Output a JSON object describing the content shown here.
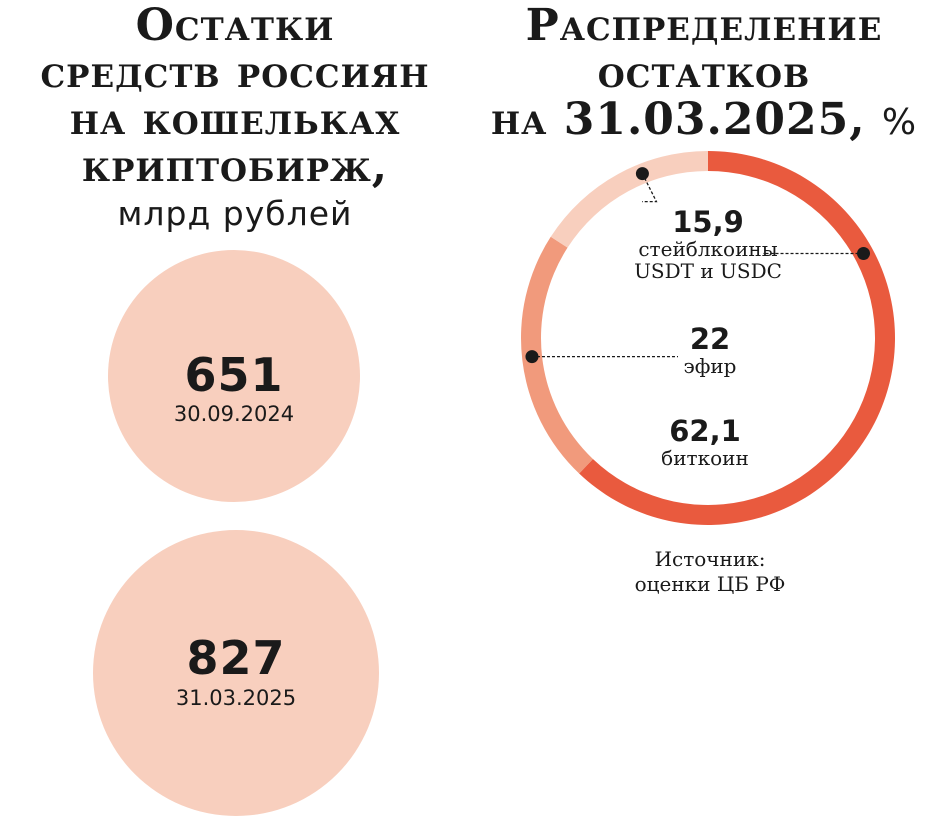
{
  "left_title": {
    "lines": [
      "Остатки",
      "средств россиян",
      "на кошельках",
      "криптобирж,"
    ],
    "unit": "млрд рублей"
  },
  "right_title": {
    "lines": [
      "Распределение",
      "остатков",
      "на 31.03.2025,"
    ],
    "unit": "%"
  },
  "chart_data": [
    {
      "type": "bubble",
      "title": "Остатки средств россиян на кошельках криптобирж, млрд рублей",
      "categories": [
        "30.09.2024",
        "31.03.2025"
      ],
      "values": [
        651,
        827
      ],
      "value_labels": [
        "651",
        "827"
      ],
      "colors": [
        "#f8cfbe",
        "#f8cfbe"
      ]
    },
    {
      "type": "pie",
      "title": "Распределение остатков на 31.03.2025, %",
      "slices": [
        {
          "label_lines": [
            "биткоин"
          ],
          "value": 62.1,
          "value_label": "62,1",
          "color": "#e95a3e"
        },
        {
          "label_lines": [
            "эфир"
          ],
          "value": 22,
          "value_label": "22",
          "color": "#f19a7c"
        },
        {
          "label_lines": [
            "стейблкоины",
            "USDT и USDC"
          ],
          "value": 15.9,
          "value_label": "15,9",
          "color": "#f8cfbe"
        }
      ]
    }
  ],
  "source": {
    "lines": [
      "Источник:",
      "оценки ЦБ РФ"
    ]
  }
}
